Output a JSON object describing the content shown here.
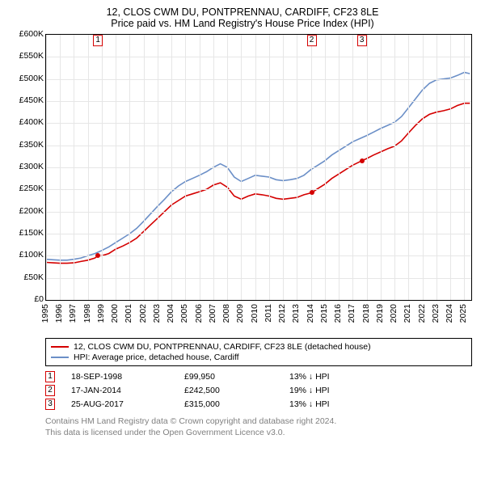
{
  "title_main": "12, CLOS CWM DU, PONTPRENNAU, CARDIFF, CF23 8LE",
  "title_sub": "Price paid vs. HM Land Registry's House Price Index (HPI)",
  "chart": {
    "type": "line",
    "background_color": "#ffffff",
    "grid_color": "#e6e6e6",
    "border_color": "#000000",
    "xlim": [
      1995,
      2025.5
    ],
    "ylim": [
      0,
      600000
    ],
    "ytick_step": 50000,
    "ytick_labels": [
      "£0",
      "£50K",
      "£100K",
      "£150K",
      "£200K",
      "£250K",
      "£300K",
      "£350K",
      "£400K",
      "£450K",
      "£500K",
      "£550K",
      "£600K"
    ],
    "xticks": [
      1995,
      1996,
      1997,
      1998,
      1999,
      2000,
      2001,
      2002,
      2003,
      2004,
      2005,
      2006,
      2007,
      2008,
      2009,
      2010,
      2011,
      2012,
      2013,
      2014,
      2015,
      2016,
      2017,
      2018,
      2019,
      2020,
      2021,
      2022,
      2023,
      2024,
      2025
    ],
    "title_fontsize": 12.5,
    "tick_fontsize": 10.5,
    "line_width": 1.6,
    "series": [
      {
        "name": "price_paid",
        "label": "12, CLOS CWM DU, PONTPRENNAU, CARDIFF, CF23 8LE (detached house)",
        "color": "#d40000",
        "points": [
          [
            1995.0,
            85000
          ],
          [
            1995.5,
            84000
          ],
          [
            1996.0,
            83000
          ],
          [
            1996.5,
            83000
          ],
          [
            1997.0,
            84000
          ],
          [
            1997.5,
            87000
          ],
          [
            1998.0,
            90000
          ],
          [
            1998.5,
            95000
          ],
          [
            1998.72,
            99950
          ],
          [
            1999.0,
            100000
          ],
          [
            1999.5,
            105000
          ],
          [
            2000.0,
            115000
          ],
          [
            2000.5,
            122000
          ],
          [
            2001.0,
            130000
          ],
          [
            2001.5,
            140000
          ],
          [
            2002.0,
            155000
          ],
          [
            2002.5,
            170000
          ],
          [
            2003.0,
            185000
          ],
          [
            2003.5,
            200000
          ],
          [
            2004.0,
            215000
          ],
          [
            2004.5,
            225000
          ],
          [
            2005.0,
            235000
          ],
          [
            2005.5,
            240000
          ],
          [
            2006.0,
            245000
          ],
          [
            2006.5,
            250000
          ],
          [
            2007.0,
            260000
          ],
          [
            2007.5,
            265000
          ],
          [
            2008.0,
            255000
          ],
          [
            2008.5,
            235000
          ],
          [
            2009.0,
            228000
          ],
          [
            2009.5,
            235000
          ],
          [
            2010.0,
            240000
          ],
          [
            2010.5,
            238000
          ],
          [
            2011.0,
            235000
          ],
          [
            2011.5,
            230000
          ],
          [
            2012.0,
            228000
          ],
          [
            2012.5,
            230000
          ],
          [
            2013.0,
            232000
          ],
          [
            2013.5,
            238000
          ],
          [
            2014.05,
            242500
          ],
          [
            2014.5,
            252000
          ],
          [
            2015.0,
            262000
          ],
          [
            2015.5,
            275000
          ],
          [
            2016.0,
            285000
          ],
          [
            2016.5,
            295000
          ],
          [
            2017.0,
            305000
          ],
          [
            2017.65,
            315000
          ],
          [
            2018.0,
            320000
          ],
          [
            2018.5,
            328000
          ],
          [
            2019.0,
            335000
          ],
          [
            2019.5,
            342000
          ],
          [
            2020.0,
            348000
          ],
          [
            2020.5,
            360000
          ],
          [
            2021.0,
            378000
          ],
          [
            2021.5,
            395000
          ],
          [
            2022.0,
            410000
          ],
          [
            2022.5,
            420000
          ],
          [
            2023.0,
            425000
          ],
          [
            2023.5,
            428000
          ],
          [
            2024.0,
            432000
          ],
          [
            2024.5,
            440000
          ],
          [
            2025.0,
            445000
          ],
          [
            2025.4,
            445000
          ]
        ]
      },
      {
        "name": "hpi",
        "label": "HPI: Average price, detached house, Cardiff",
        "color": "#6b8fc7",
        "points": [
          [
            1995.0,
            92000
          ],
          [
            1995.5,
            91000
          ],
          [
            1996.0,
            90000
          ],
          [
            1996.5,
            90000
          ],
          [
            1997.0,
            92000
          ],
          [
            1997.5,
            95000
          ],
          [
            1998.0,
            100000
          ],
          [
            1998.5,
            105000
          ],
          [
            1999.0,
            112000
          ],
          [
            1999.5,
            120000
          ],
          [
            2000.0,
            130000
          ],
          [
            2000.5,
            140000
          ],
          [
            2001.0,
            150000
          ],
          [
            2001.5,
            162000
          ],
          [
            2002.0,
            178000
          ],
          [
            2002.5,
            195000
          ],
          [
            2003.0,
            212000
          ],
          [
            2003.5,
            228000
          ],
          [
            2004.0,
            245000
          ],
          [
            2004.5,
            258000
          ],
          [
            2005.0,
            268000
          ],
          [
            2005.5,
            275000
          ],
          [
            2006.0,
            282000
          ],
          [
            2006.5,
            290000
          ],
          [
            2007.0,
            300000
          ],
          [
            2007.5,
            308000
          ],
          [
            2008.0,
            300000
          ],
          [
            2008.5,
            278000
          ],
          [
            2009.0,
            268000
          ],
          [
            2009.5,
            275000
          ],
          [
            2010.0,
            282000
          ],
          [
            2010.5,
            280000
          ],
          [
            2011.0,
            278000
          ],
          [
            2011.5,
            272000
          ],
          [
            2012.0,
            270000
          ],
          [
            2012.5,
            272000
          ],
          [
            2013.0,
            275000
          ],
          [
            2013.5,
            282000
          ],
          [
            2014.0,
            295000
          ],
          [
            2014.5,
            305000
          ],
          [
            2015.0,
            315000
          ],
          [
            2015.5,
            328000
          ],
          [
            2016.0,
            338000
          ],
          [
            2016.5,
            348000
          ],
          [
            2017.0,
            358000
          ],
          [
            2017.5,
            365000
          ],
          [
            2018.0,
            372000
          ],
          [
            2018.5,
            380000
          ],
          [
            2019.0,
            388000
          ],
          [
            2019.5,
            395000
          ],
          [
            2020.0,
            402000
          ],
          [
            2020.5,
            415000
          ],
          [
            2021.0,
            435000
          ],
          [
            2021.5,
            455000
          ],
          [
            2022.0,
            475000
          ],
          [
            2022.5,
            490000
          ],
          [
            2023.0,
            498000
          ],
          [
            2023.5,
            500000
          ],
          [
            2024.0,
            502000
          ],
          [
            2024.5,
            508000
          ],
          [
            2025.0,
            515000
          ],
          [
            2025.4,
            512000
          ]
        ]
      }
    ],
    "sale_markers": [
      {
        "n": "1",
        "x": 1998.72,
        "y": 99950,
        "color": "#d40000"
      },
      {
        "n": "2",
        "x": 2014.05,
        "y": 242500,
        "color": "#d40000"
      },
      {
        "n": "3",
        "x": 2017.65,
        "y": 315000,
        "color": "#d40000"
      }
    ],
    "top_markers": [
      {
        "n": "1",
        "x": 1998.72,
        "color": "#d40000"
      },
      {
        "n": "2",
        "x": 2014.05,
        "color": "#d40000"
      },
      {
        "n": "3",
        "x": 2017.65,
        "color": "#d40000"
      }
    ]
  },
  "legend": {
    "border_color": "#000000",
    "items": [
      {
        "color": "#d40000",
        "label": "12, CLOS CWM DU, PONTPRENNAU, CARDIFF, CF23 8LE (detached house)"
      },
      {
        "color": "#6b8fc7",
        "label": "HPI: Average price, detached house, Cardiff"
      }
    ]
  },
  "sales": [
    {
      "n": "1",
      "color": "#d40000",
      "date": "18-SEP-1998",
      "price": "£99,950",
      "diff": "13% ↓ HPI"
    },
    {
      "n": "2",
      "color": "#d40000",
      "date": "17-JAN-2014",
      "price": "£242,500",
      "diff": "19% ↓ HPI"
    },
    {
      "n": "3",
      "color": "#d40000",
      "date": "25-AUG-2017",
      "price": "£315,000",
      "diff": "13% ↓ HPI"
    }
  ],
  "footer": {
    "line1": "Contains HM Land Registry data © Crown copyright and database right 2024.",
    "line2": "This data is licensed under the Open Government Licence v3.0."
  }
}
